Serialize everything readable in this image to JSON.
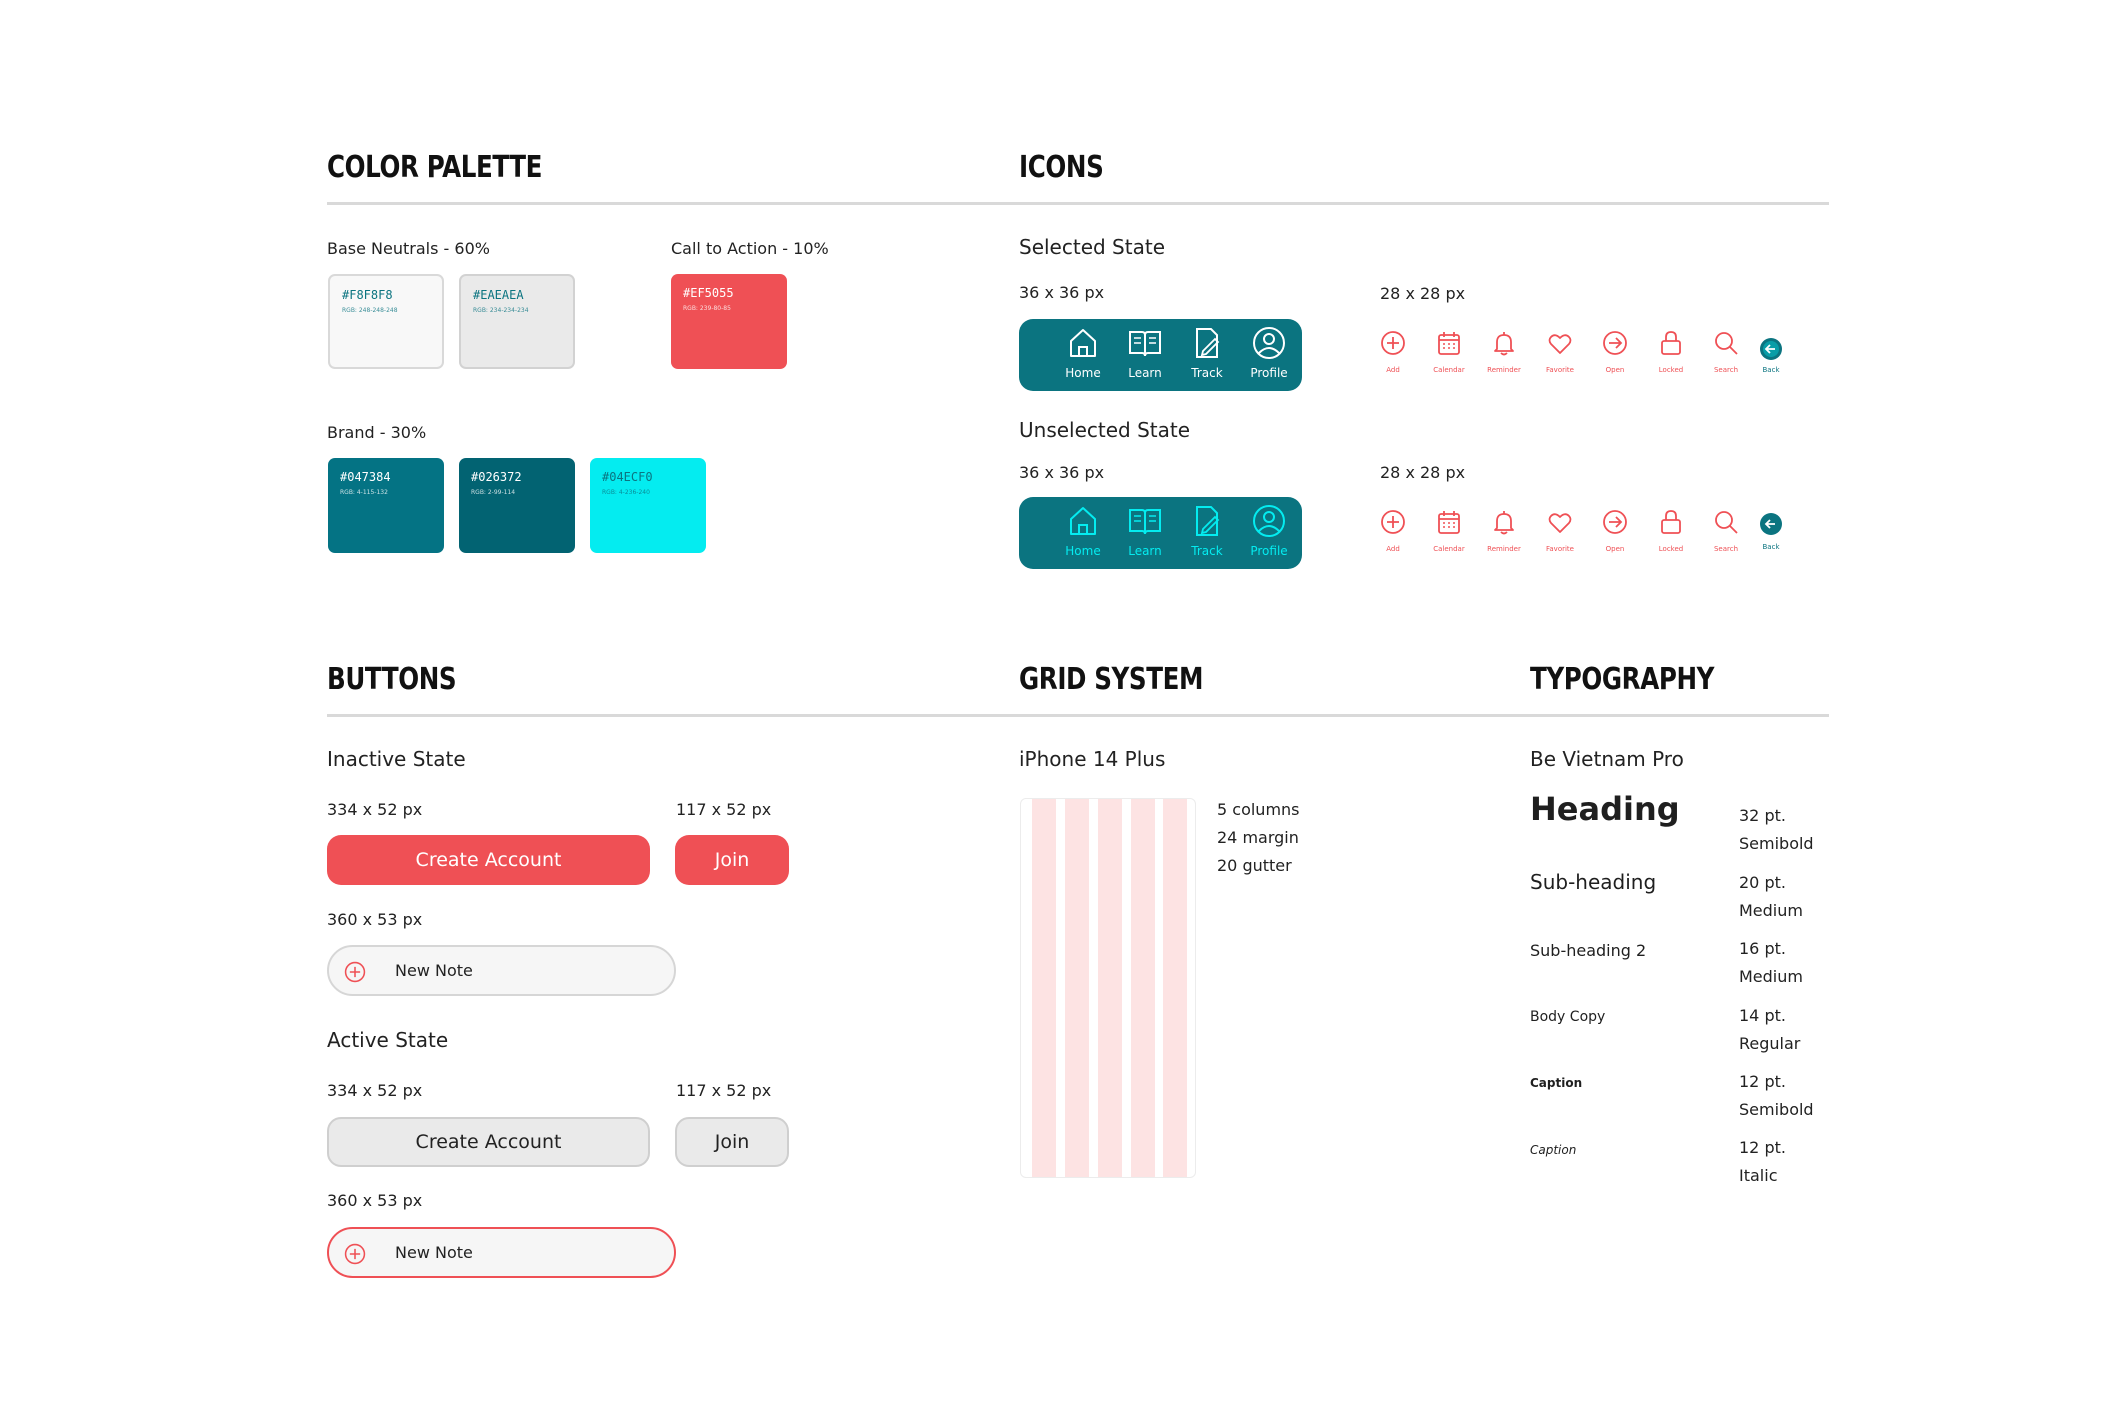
{
  "sections": {
    "color_palette": "COLOR PALETTE",
    "icons": "ICONS",
    "buttons": "BUTTONS",
    "grid_system": "GRID SYSTEM",
    "typography": "TYPOGRAPHY"
  },
  "palette": {
    "base_label": "Base Neutrals - 60%",
    "cta_label": "Call to Action - 10%",
    "brand_label": "Brand - 30%",
    "base": [
      {
        "hex": "#F8F8F8",
        "rgb": "RGB: 248-248-248",
        "color": "#F8F8F8"
      },
      {
        "hex": "#EAEAEA",
        "rgb": "RGB: 234-234-234",
        "color": "#EAEAEA"
      }
    ],
    "cta": [
      {
        "hex": "#EF5055",
        "rgb": "RGB: 239-80-85",
        "color": "#EF5055"
      }
    ],
    "brand": [
      {
        "hex": "#047384",
        "rgb": "RGB: 4-115-132",
        "color": "#047384"
      },
      {
        "hex": "#026372",
        "rgb": "RGB: 2-99-114",
        "color": "#026372"
      },
      {
        "hex": "#04ECF0",
        "rgb": "RGB: 4-236-240",
        "color": "#04ECF0"
      }
    ]
  },
  "icons": {
    "selected_title": "Selected State",
    "unselected_title": "Unselected State",
    "size_36": "36 x 36 px",
    "size_28": "28 x 28 px",
    "nav": [
      {
        "label": "Home",
        "icon": "home-icon"
      },
      {
        "label": "Learn",
        "icon": "book-icon"
      },
      {
        "label": "Track",
        "icon": "pen-icon"
      },
      {
        "label": "Profile",
        "icon": "profile-icon"
      }
    ],
    "small": [
      {
        "label": "Add",
        "icon": "add-icon"
      },
      {
        "label": "Calendar",
        "icon": "calendar-icon"
      },
      {
        "label": "Reminder",
        "icon": "bell-icon"
      },
      {
        "label": "Favorite",
        "icon": "heart-icon"
      },
      {
        "label": "Open",
        "icon": "arrow-right-circle-icon"
      },
      {
        "label": "Locked",
        "icon": "lock-icon"
      },
      {
        "label": "Search",
        "icon": "search-icon"
      },
      {
        "label": "Back",
        "icon": "back-icon"
      }
    ],
    "selected_nav_label_color": "#FFFFFF",
    "unselected_nav_color": "#04ECF0"
  },
  "buttons": {
    "inactive_title": "Inactive State",
    "active_title": "Active State",
    "size_large": "334 x 52 px",
    "size_small": "117 x 52 px",
    "size_note": "360 x 53 px",
    "create_account": "Create Account",
    "join": "Join",
    "new_note": "New Note"
  },
  "grid": {
    "device": "iPhone 14 Plus",
    "columns": "5 columns",
    "margin": "24 margin",
    "gutter": "20 gutter"
  },
  "typography": {
    "font": "Be Vietnam Pro",
    "styles": [
      {
        "name": "Heading",
        "size": "32 pt.",
        "weight": "Semibold"
      },
      {
        "name": "Sub-heading",
        "size": "20 pt.",
        "weight": "Medium"
      },
      {
        "name": "Sub-heading 2",
        "size": "16 pt.",
        "weight": "Medium"
      },
      {
        "name": "Body Copy",
        "size": "14 pt.",
        "weight": "Regular"
      },
      {
        "name": "Caption",
        "size": "12 pt.",
        "weight": "Semibold"
      },
      {
        "name": "Caption",
        "size": "12 pt.",
        "weight": "Italic"
      }
    ]
  }
}
